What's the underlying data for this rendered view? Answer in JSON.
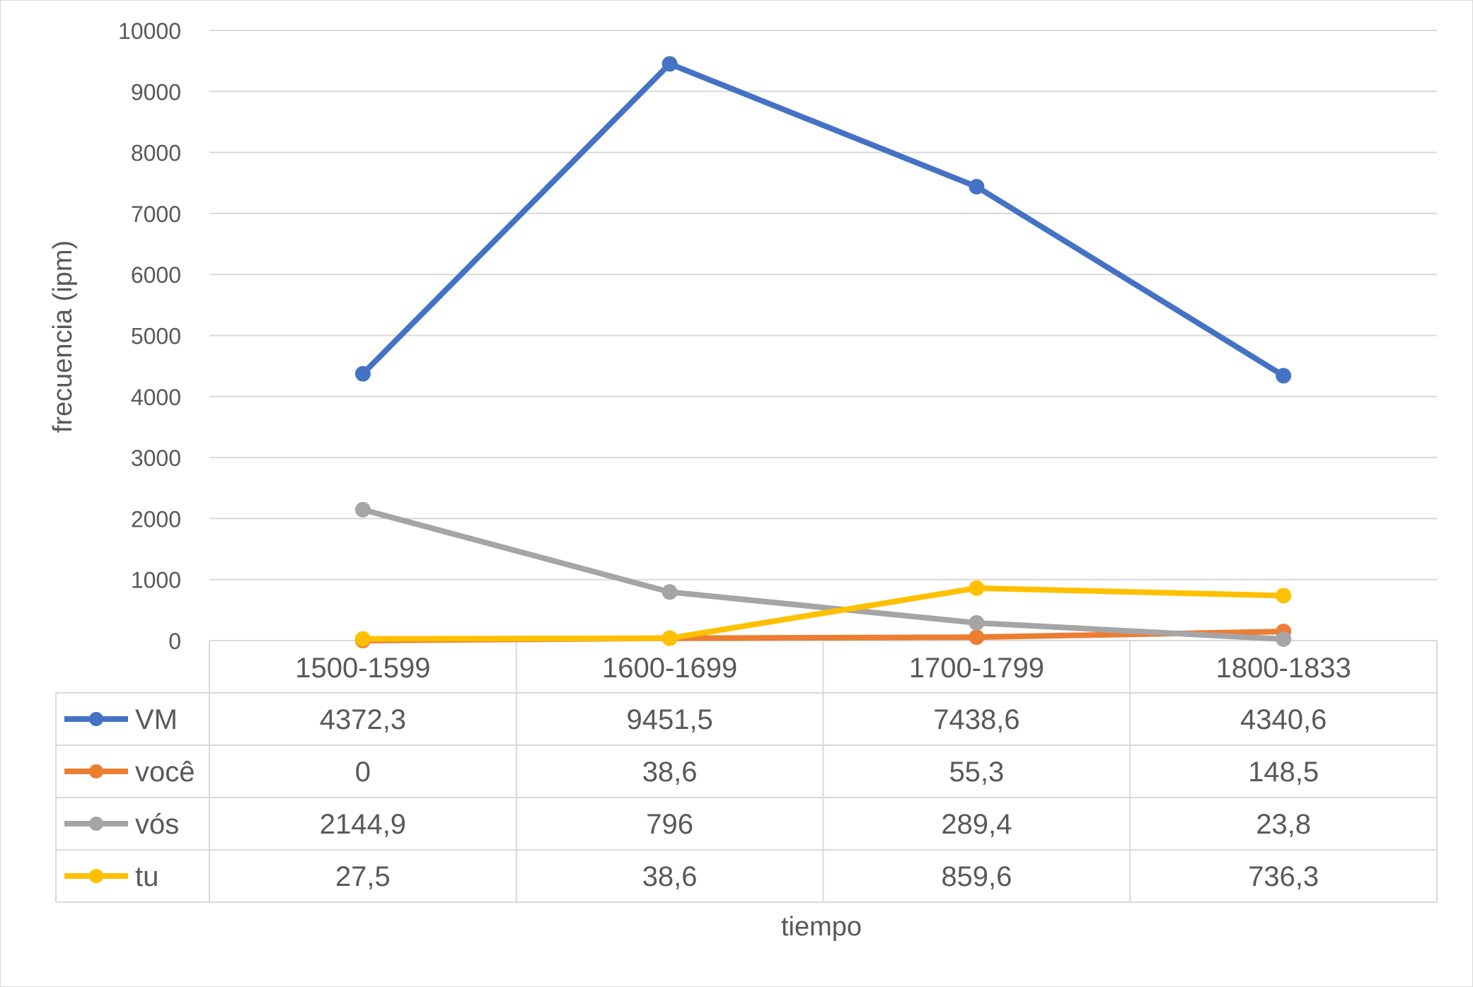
{
  "chart_data": {
    "type": "line",
    "title": "",
    "xlabel": "tiempo",
    "ylabel": "frecuencia (ipm)",
    "ylim": [
      0,
      10000
    ],
    "y_ticks": [
      0,
      1000,
      2000,
      3000,
      4000,
      5000,
      6000,
      7000,
      8000,
      9000,
      10000
    ],
    "grid": true,
    "legend": "data-table",
    "categories": [
      "1500-1599",
      "1600-1699",
      "1700-1799",
      "1800-1833"
    ],
    "series": [
      {
        "name": "VM",
        "color": "#4472C4",
        "values": [
          4372.3,
          9451.5,
          7438.6,
          4340.6
        ],
        "labels": [
          "4372,3",
          "9451,5",
          "7438,6",
          "4340,6"
        ]
      },
      {
        "name": "você",
        "color": "#ED7D31",
        "values": [
          0,
          38.6,
          55.3,
          148.5
        ],
        "labels": [
          "0",
          "38,6",
          "55,3",
          "148,5"
        ]
      },
      {
        "name": "vós",
        "color": "#A5A5A5",
        "values": [
          2144.9,
          796,
          289.4,
          23.8
        ],
        "labels": [
          "2144,9",
          "796",
          "289,4",
          "23,8"
        ]
      },
      {
        "name": "tu",
        "color": "#FFC000",
        "values": [
          27.5,
          38.6,
          859.6,
          736.3
        ],
        "labels": [
          "27,5",
          "38,6",
          "859,6",
          "736,3"
        ]
      }
    ]
  }
}
